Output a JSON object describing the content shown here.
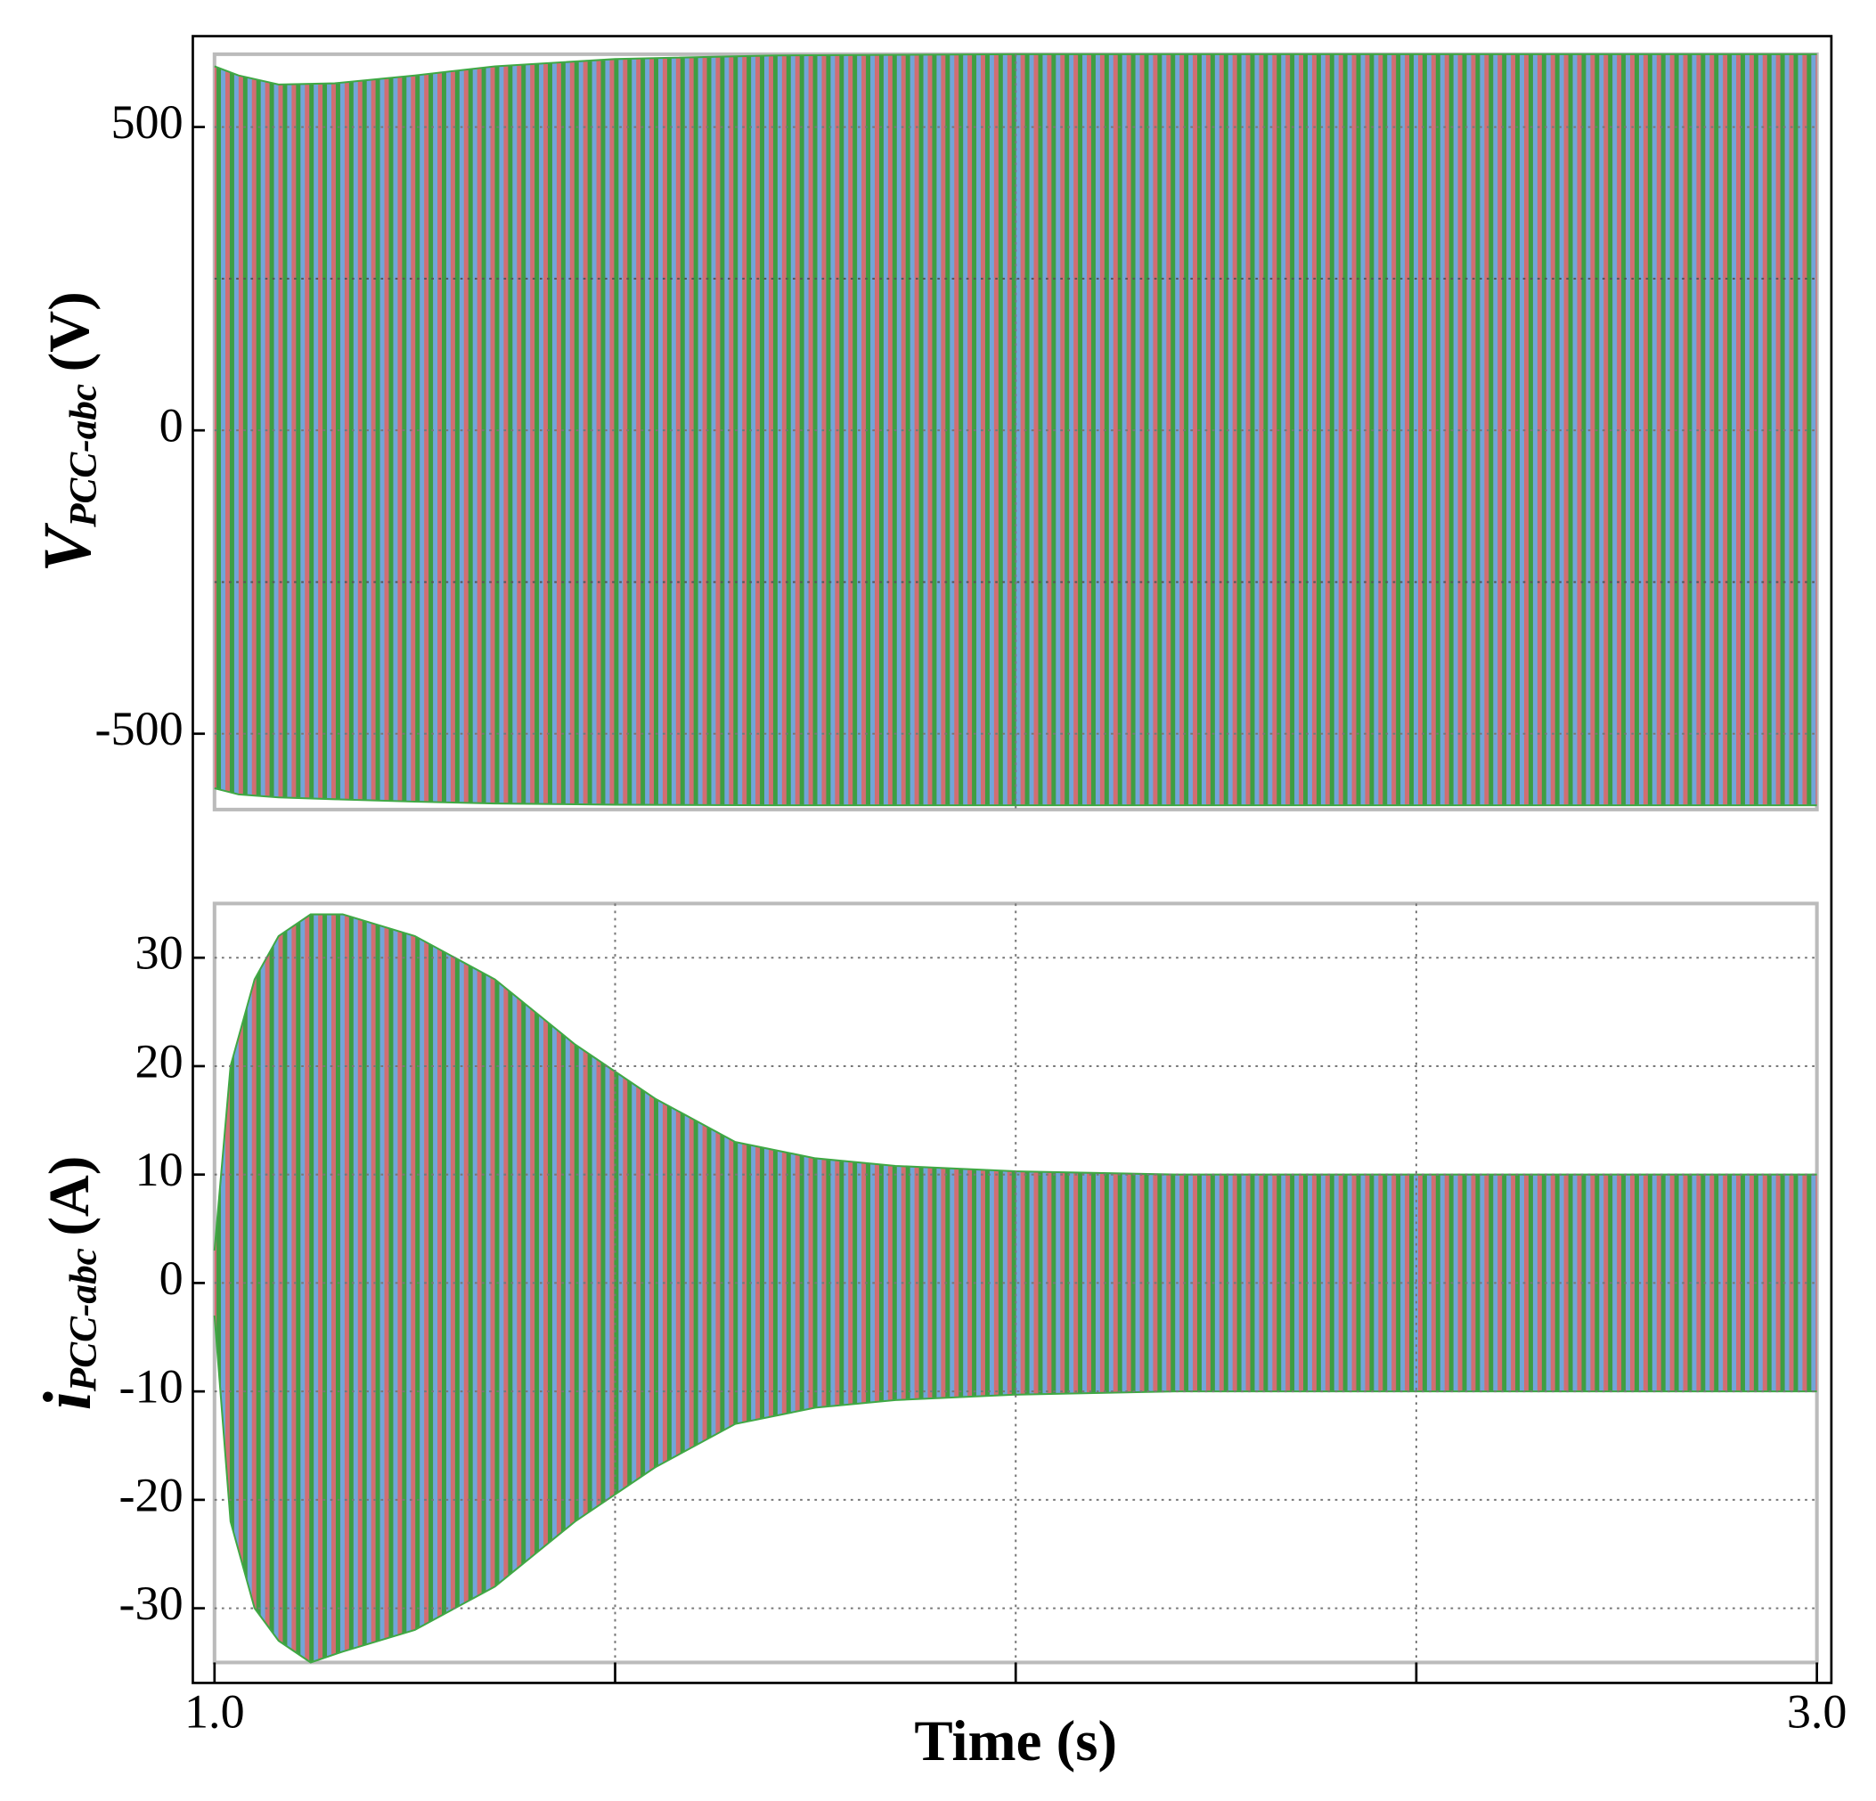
{
  "chart_data": [
    {
      "type": "band",
      "y_label": {
        "main": "V",
        "sub": "PCC-abc",
        "unit": "(V)"
      },
      "colors": [
        "#e8707a",
        "#3fa844",
        "#7ab0f0"
      ],
      "x": [
        1.0,
        1.03,
        1.08,
        1.15,
        1.25,
        1.35,
        1.5,
        1.7,
        2.0,
        2.5,
        3.0
      ],
      "series": [
        {
          "values": [
            600,
            585,
            570,
            572,
            585,
            600,
            612,
            618,
            620,
            620,
            620
          ]
        },
        {
          "values": [
            -590,
            -600,
            -605,
            -608,
            -612,
            -615,
            -617,
            -618,
            -618,
            -618,
            -618
          ]
        }
      ],
      "xlim": [
        1,
        3
      ],
      "ylim": [
        -625,
        620
      ],
      "yticks": [
        -500,
        0,
        500
      ],
      "ygrid": [
        -250,
        250
      ],
      "xgrid": [
        2
      ],
      "grid": true
    },
    {
      "type": "band",
      "y_label": {
        "main": "i",
        "sub": "PCC-abc",
        "unit": "(A)"
      },
      "x_label": "Time (s)",
      "colors": [
        "#e8707a",
        "#3fa844",
        "#7ab0f0"
      ],
      "x": [
        1.0,
        1.02,
        1.05,
        1.08,
        1.12,
        1.16,
        1.25,
        1.35,
        1.45,
        1.55,
        1.65,
        1.75,
        1.85,
        2.0,
        2.2,
        2.5,
        3.0
      ],
      "series": [
        {
          "values": [
            3,
            20,
            28,
            32,
            34,
            34,
            32,
            28,
            22,
            17,
            13,
            11.5,
            10.8,
            10.3,
            10,
            10,
            10
          ]
        },
        {
          "values": [
            -3,
            -22,
            -30,
            -33,
            -35,
            -34,
            -32,
            -28,
            -22,
            -17,
            -13,
            -11.5,
            -10.8,
            -10.3,
            -10,
            -10,
            -10
          ]
        }
      ],
      "xlim": [
        1,
        3
      ],
      "ylim": [
        -35,
        35
      ],
      "xticks": [
        {
          "value": 1,
          "label": "1.0"
        },
        {
          "value": 3,
          "label": "3.0"
        }
      ],
      "yticks": [
        -30,
        -20,
        -10,
        0,
        10,
        20,
        30
      ],
      "xgrid": [
        1.5,
        2,
        2.5
      ],
      "grid": true
    }
  ]
}
